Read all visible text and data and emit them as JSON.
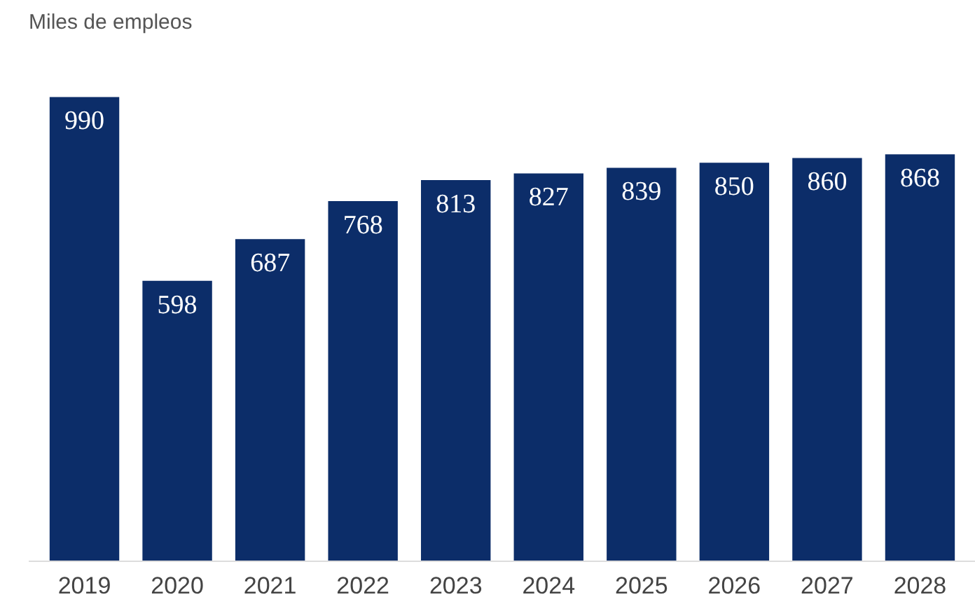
{
  "chart_data": {
    "type": "bar",
    "title": "Miles de empleos",
    "categories": [
      "2019",
      "2020",
      "2021",
      "2022",
      "2023",
      "2024",
      "2025",
      "2026",
      "2027",
      "2028"
    ],
    "values": [
      990,
      598,
      687,
      768,
      813,
      827,
      839,
      850,
      860,
      868
    ],
    "color": "#0c2d69",
    "data_labels": true
  }
}
